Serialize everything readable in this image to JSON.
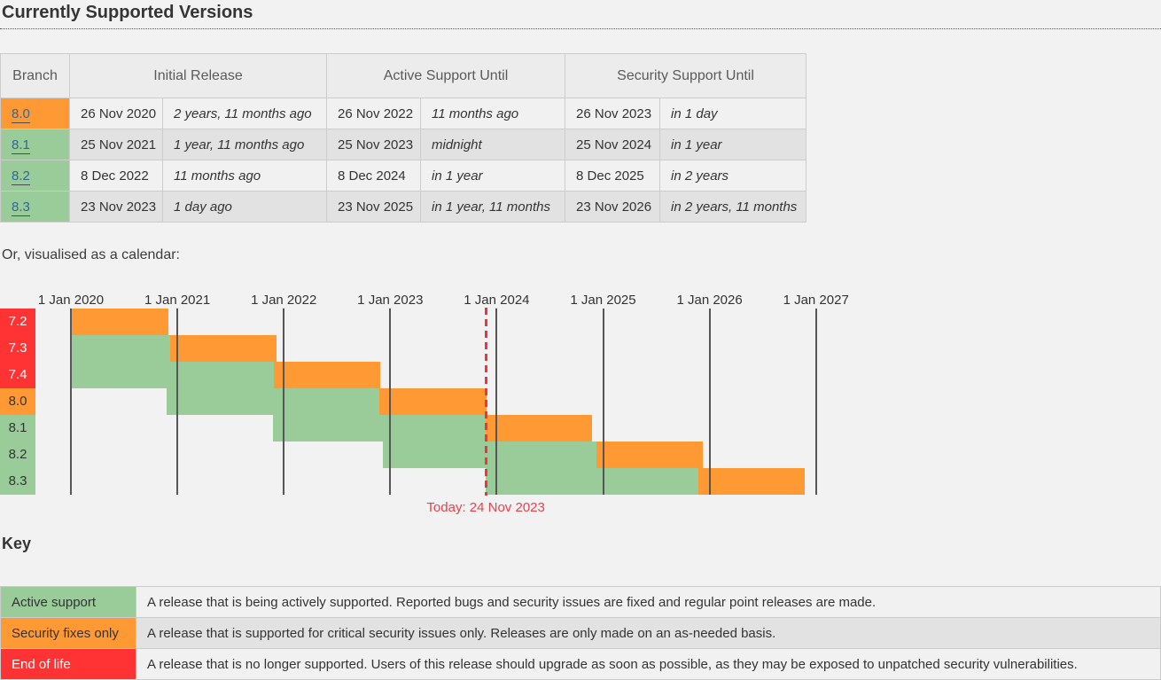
{
  "page": {
    "title": "Currently Supported Versions",
    "calendar_intro": "Or, visualised as a calendar:",
    "key_heading": "Key"
  },
  "colors": {
    "active_support": "#99cc99",
    "security_fixes_only": "#ff9933",
    "end_of_life": "#ff3333",
    "today_marker": "#e5424d",
    "branch_link": "#336699",
    "page_background": "#f2f2f2"
  },
  "table": {
    "headers": {
      "branch": "Branch",
      "initial": "Initial Release",
      "active": "Active Support Until",
      "security": "Security Support Until"
    },
    "rows": [
      {
        "branch": "8.0",
        "state": "security",
        "initial_date": "26 Nov 2020",
        "initial_relative": "2 years, 11 months ago",
        "active_date": "26 Nov 2022",
        "active_relative": "11 months ago",
        "security_date": "26 Nov 2023",
        "security_relative": "in 1 day"
      },
      {
        "branch": "8.1",
        "state": "active",
        "initial_date": "25 Nov 2021",
        "initial_relative": "1 year, 11 months ago",
        "active_date": "25 Nov 2023",
        "active_relative": "midnight",
        "security_date": "25 Nov 2024",
        "security_relative": "in 1 year"
      },
      {
        "branch": "8.2",
        "state": "active",
        "initial_date": "8 Dec 2022",
        "initial_relative": "11 months ago",
        "active_date": "8 Dec 2024",
        "active_relative": "in 1 year",
        "security_date": "8 Dec 2025",
        "security_relative": "in 2 years"
      },
      {
        "branch": "8.3",
        "state": "active",
        "initial_date": "23 Nov 2023",
        "initial_relative": "1 day ago",
        "active_date": "23 Nov 2025",
        "active_relative": "in 1 year, 11 months",
        "security_date": "23 Nov 2026",
        "security_relative": "in 2 years, 11 months"
      }
    ]
  },
  "chart_data": {
    "type": "gantt",
    "x_axis": {
      "tick_labels": [
        "1 Jan 2020",
        "1 Jan 2021",
        "1 Jan 2022",
        "1 Jan 2023",
        "1 Jan 2024",
        "1 Jan 2025",
        "1 Jan 2026",
        "1 Jan 2027"
      ],
      "tick_years": [
        2020,
        2021,
        2022,
        2023,
        2024,
        2025,
        2026,
        2027
      ]
    },
    "rows": [
      {
        "label": "7.2",
        "state": "eol",
        "segments": [
          {
            "type": "security",
            "start": 2020.0,
            "end": 2020.915
          }
        ]
      },
      {
        "label": "7.3",
        "state": "eol",
        "segments": [
          {
            "type": "active",
            "start": 2020.0,
            "end": 2020.929
          },
          {
            "type": "security",
            "start": 2020.929,
            "end": 2021.929
          }
        ]
      },
      {
        "label": "7.4",
        "state": "eol",
        "segments": [
          {
            "type": "active",
            "start": 2020.0,
            "end": 2021.907
          },
          {
            "type": "security",
            "start": 2021.907,
            "end": 2022.907
          }
        ]
      },
      {
        "label": "8.0",
        "state": "security",
        "segments": [
          {
            "type": "active",
            "start": 2020.902,
            "end": 2022.901
          },
          {
            "type": "security",
            "start": 2022.901,
            "end": 2023.901
          }
        ]
      },
      {
        "label": "8.1",
        "state": "active",
        "segments": [
          {
            "type": "active",
            "start": 2021.899,
            "end": 2023.899
          },
          {
            "type": "security",
            "start": 2023.899,
            "end": 2024.899
          }
        ]
      },
      {
        "label": "8.2",
        "state": "active",
        "segments": [
          {
            "type": "active",
            "start": 2022.934,
            "end": 2024.934
          },
          {
            "type": "security",
            "start": 2024.934,
            "end": 2025.934
          }
        ]
      },
      {
        "label": "8.3",
        "state": "active",
        "segments": [
          {
            "type": "active",
            "start": 2023.896,
            "end": 2025.894
          },
          {
            "type": "security",
            "start": 2025.894,
            "end": 2026.894
          }
        ]
      }
    ],
    "today": {
      "label": "Today: 24 Nov 2023",
      "year_position": 2023.898
    }
  },
  "key": {
    "rows": [
      {
        "label": "Active support",
        "state": "active",
        "description": "A release that is being actively supported. Reported bugs and security issues are fixed and regular point releases are made."
      },
      {
        "label": "Security fixes only",
        "state": "security",
        "description": "A release that is supported for critical security issues only. Releases are only made on an as-needed basis."
      },
      {
        "label": "End of life",
        "state": "eol",
        "description": "A release that is no longer supported. Users of this release should upgrade as soon as possible, as they may be exposed to unpatched security vulnerabilities."
      }
    ]
  }
}
